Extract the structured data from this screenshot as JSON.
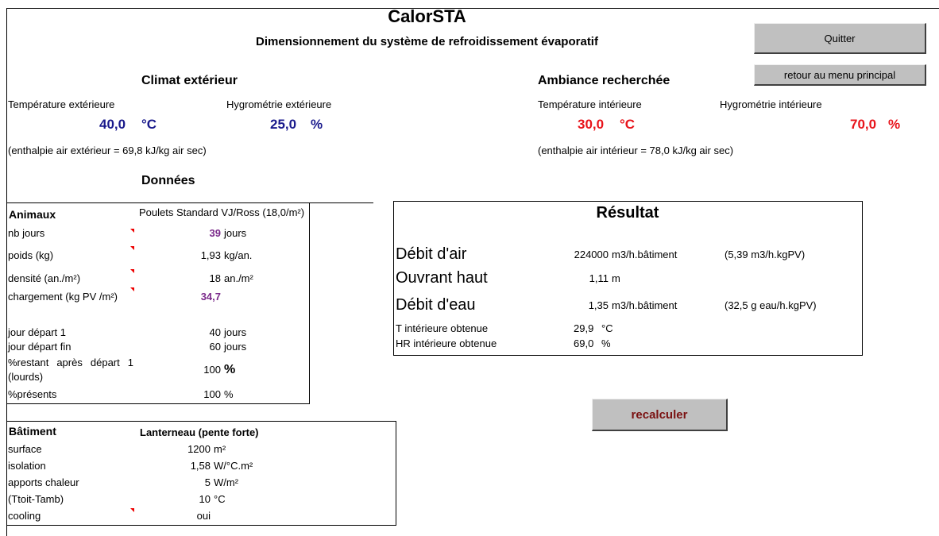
{
  "header": {
    "title": "CalorSTA",
    "subtitle": "Dimensionnement du système de refroidissement évaporatif"
  },
  "buttons": {
    "quit": "Quitter",
    "menu": "retour au menu principal",
    "recalc": "recalculer"
  },
  "climate": {
    "heading": "Climat extérieur",
    "temp_label": "Température extérieure",
    "temp_value": "40,0",
    "temp_unit": "°C",
    "hum_label": "Hygrométrie extérieure",
    "hum_value": "25,0",
    "hum_unit": "%",
    "enthalpy": "(enthalpie air extérieur = 69,8 kJ/kg air sec)"
  },
  "ambiance": {
    "heading": "Ambiance recherchée",
    "temp_label": "Température intérieure",
    "temp_value": "30,0",
    "temp_unit": "°C",
    "hum_label": "Hygrométrie intérieure",
    "hum_value": "70,0",
    "hum_unit": "%",
    "enthalpy": "(enthalpie air intérieur = 78,0 kJ/kg air sec)"
  },
  "data_heading": "Données",
  "animals": {
    "title": "Animaux",
    "type": "Poulets Standard VJ/Ross (18,0/m²)",
    "rows": [
      {
        "label": "nb jours",
        "value": "39",
        "unit": "jours",
        "color": "#7b2a8b"
      },
      {
        "label": "poids (kg)",
        "value": "1,93",
        "unit": "kg/an."
      },
      {
        "label": "densité (an./m²)",
        "value": "18",
        "unit": "an./m²"
      },
      {
        "label": "chargement (kg PV /m²)",
        "value": "34,7",
        "color": "#7b2a8b"
      },
      {
        "label": "jour départ 1",
        "value": "40",
        "unit": "jours"
      },
      {
        "label": "jour départ fin",
        "value": "60",
        "unit": "jours"
      },
      {
        "label": "%restant après départ 1 (lourds)",
        "value": "100",
        "unit": "%"
      },
      {
        "label": "%présents",
        "value": "100",
        "unit": "%"
      }
    ]
  },
  "building": {
    "title": "Bâtiment",
    "type": "Lanterneau (pente forte)",
    "rows": [
      {
        "label": "surface",
        "value": "1200",
        "unit": "m²"
      },
      {
        "label": "isolation",
        "value": "1,58",
        "unit": "W/°C.m²"
      },
      {
        "label": "apports chaleur",
        "value": "5",
        "unit": "W/m²"
      },
      {
        "label": "(Ttoit-Tamb)",
        "value": "10",
        "unit": "°C"
      },
      {
        "label": "cooling",
        "value": "oui"
      }
    ]
  },
  "result": {
    "title": "Résultat",
    "main_rows": [
      {
        "label": "Débit d'air",
        "value": "224000",
        "unit": "m3/h.bâtiment",
        "extra": "(5,39 m3/h.kgPV)"
      },
      {
        "label": "Ouvrant haut",
        "value": "1,11",
        "unit": "m"
      },
      {
        "label": "Débit d'eau",
        "value": "1,35",
        "unit": "m3/h.bâtiment",
        "extra": "(32,5 g eau/h.kgPV)"
      }
    ],
    "detail_rows": [
      {
        "label": "T intérieure obtenue",
        "value": "29,9",
        "unit": "°C"
      },
      {
        "label": "HR intérieure obtenue",
        "value": "69,0",
        "unit": "%"
      }
    ]
  }
}
